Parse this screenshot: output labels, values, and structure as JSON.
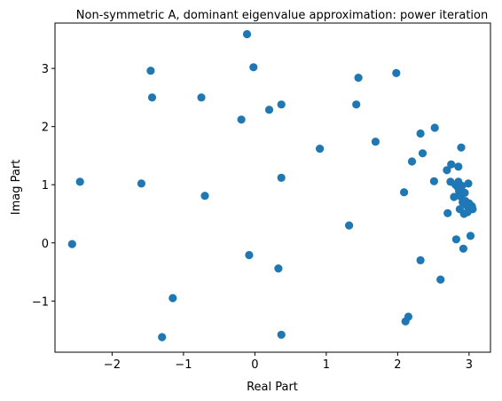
{
  "chart_data": {
    "type": "scatter",
    "title": "Non-symmetric A, dominant eigenvalue approximation: power iteration",
    "xlabel": "Real Part",
    "ylabel": "Imag Part",
    "xlim": [
      -2.8,
      3.3
    ],
    "ylim": [
      -1.88,
      3.78
    ],
    "xticks": [
      -2,
      -1,
      0,
      1,
      2,
      3
    ],
    "xtick_labels": [
      "−2",
      "−1",
      "0",
      "1",
      "2",
      "3"
    ],
    "yticks": [
      -1,
      0,
      1,
      2,
      3
    ],
    "ytick_labels": [
      "−1",
      "0",
      "1",
      "2",
      "3"
    ],
    "grid": false,
    "marker_color": "#1f77b4",
    "points": [
      {
        "x": -2.56,
        "y": -0.02
      },
      {
        "x": -2.45,
        "y": 1.05
      },
      {
        "x": -1.59,
        "y": 1.02
      },
      {
        "x": -1.46,
        "y": 2.96
      },
      {
        "x": -1.44,
        "y": 2.5
      },
      {
        "x": -1.15,
        "y": -0.95
      },
      {
        "x": -1.3,
        "y": -1.62
      },
      {
        "x": -0.75,
        "y": 2.5
      },
      {
        "x": -0.7,
        "y": 0.81
      },
      {
        "x": -0.19,
        "y": 2.12
      },
      {
        "x": -0.11,
        "y": 3.59
      },
      {
        "x": -0.08,
        "y": -0.21
      },
      {
        "x": -0.02,
        "y": 3.02
      },
      {
        "x": 0.2,
        "y": 2.29
      },
      {
        "x": 0.33,
        "y": -0.44
      },
      {
        "x": 0.37,
        "y": 2.38
      },
      {
        "x": 0.37,
        "y": 1.12
      },
      {
        "x": 0.37,
        "y": -1.58
      },
      {
        "x": 0.91,
        "y": 1.62
      },
      {
        "x": 1.32,
        "y": 0.3
      },
      {
        "x": 1.42,
        "y": 2.38
      },
      {
        "x": 1.45,
        "y": 2.84
      },
      {
        "x": 1.69,
        "y": 1.74
      },
      {
        "x": 1.98,
        "y": 2.92
      },
      {
        "x": 2.09,
        "y": 0.87
      },
      {
        "x": 2.11,
        "y": -1.35
      },
      {
        "x": 2.15,
        "y": -1.27
      },
      {
        "x": 2.2,
        "y": 1.4
      },
      {
        "x": 2.32,
        "y": 1.88
      },
      {
        "x": 2.32,
        "y": -0.3
      },
      {
        "x": 2.35,
        "y": 1.54
      },
      {
        "x": 2.51,
        "y": 1.06
      },
      {
        "x": 2.52,
        "y": 1.98
      },
      {
        "x": 2.6,
        "y": -0.63
      },
      {
        "x": 2.69,
        "y": 1.25
      },
      {
        "x": 2.7,
        "y": 0.51
      },
      {
        "x": 2.74,
        "y": 1.05
      },
      {
        "x": 2.75,
        "y": 1.35
      },
      {
        "x": 2.79,
        "y": 0.79
      },
      {
        "x": 2.81,
        "y": 1.0
      },
      {
        "x": 2.82,
        "y": 0.06
      },
      {
        "x": 2.84,
        "y": 0.96
      },
      {
        "x": 2.85,
        "y": 1.31
      },
      {
        "x": 2.85,
        "y": 1.05
      },
      {
        "x": 2.86,
        "y": 0.89
      },
      {
        "x": 2.87,
        "y": 0.58
      },
      {
        "x": 2.88,
        "y": 0.8
      },
      {
        "x": 2.89,
        "y": 1.64
      },
      {
        "x": 2.9,
        "y": 0.98
      },
      {
        "x": 2.91,
        "y": 0.7
      },
      {
        "x": 2.92,
        "y": -0.1
      },
      {
        "x": 2.93,
        "y": 0.5
      },
      {
        "x": 2.94,
        "y": 0.86
      },
      {
        "x": 2.95,
        "y": 0.72
      },
      {
        "x": 2.97,
        "y": 0.64
      },
      {
        "x": 2.98,
        "y": 0.53
      },
      {
        "x": 2.99,
        "y": 1.02
      },
      {
        "x": 3.0,
        "y": 0.68
      },
      {
        "x": 3.02,
        "y": 0.12
      },
      {
        "x": 3.04,
        "y": 0.63
      },
      {
        "x": 3.05,
        "y": 0.58
      }
    ]
  }
}
